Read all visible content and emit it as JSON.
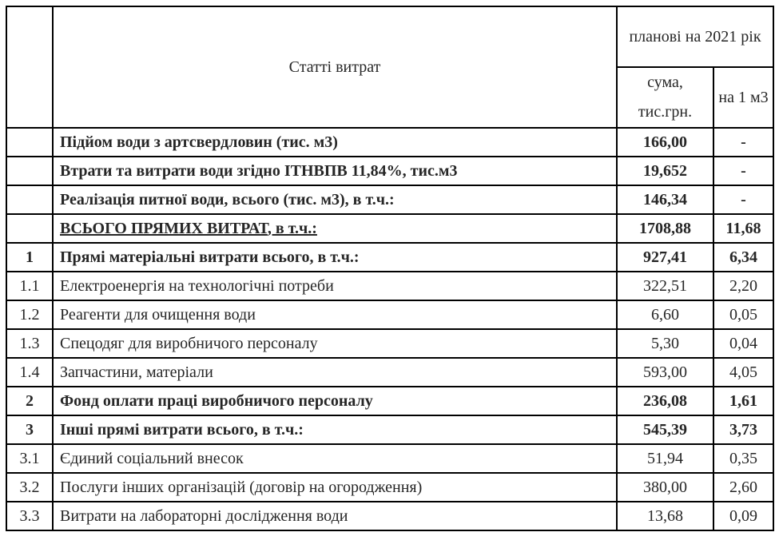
{
  "header": {
    "items_label": "Статті витрат",
    "planned_label": "планові на 2021 рік",
    "sum_label": "сума, тис.грн.",
    "per_unit_label": "на 1 м3"
  },
  "rows": [
    {
      "num": "",
      "name": "Підйом води з артсвердловин (тис. м3)",
      "sum": "166,00",
      "per": "-",
      "bold": true,
      "underline": false
    },
    {
      "num": "",
      "name": "Втрати та витрати води згідно ІТНВПВ 11,84%, тис.м3",
      "sum": "19,652",
      "per": "-",
      "bold": true,
      "underline": false
    },
    {
      "num": "",
      "name": "Реалізація питної води, всього (тис. м3), в т.ч.:",
      "sum": "146,34",
      "per": "-",
      "bold": true,
      "underline": false
    },
    {
      "num": "",
      "name": "ВСЬОГО ПРЯМИХ ВИТРАТ",
      "name_suffix": ", в т.ч.:",
      "sum": "1708,88",
      "per": "11,68",
      "bold": true,
      "underline": true
    },
    {
      "num": "1",
      "name": "Прямі матеріальні витрати всього, в т.ч.:",
      "sum": "927,41",
      "per": "6,34",
      "bold": true,
      "underline": false
    },
    {
      "num": "1.1",
      "name": "Електроенергія на технологічні потреби",
      "sum": "322,51",
      "per": "2,20",
      "bold": false,
      "underline": false
    },
    {
      "num": "1.2",
      "name": "Реагенти для очищення води",
      "sum": "6,60",
      "per": "0,05",
      "bold": false,
      "underline": false
    },
    {
      "num": "1.3",
      "name": "Спецодяг для виробничого персоналу",
      "sum": "5,30",
      "per": "0,04",
      "bold": false,
      "underline": false
    },
    {
      "num": "1.4",
      "name": "Запчастини, матеріали",
      "sum": "593,00",
      "per": "4,05",
      "bold": false,
      "underline": false
    },
    {
      "num": "2",
      "name": "Фонд оплати праці виробничого персоналу",
      "sum": "236,08",
      "per": "1,61",
      "bold": true,
      "underline": false
    },
    {
      "num": "3",
      "name": "Інші прямі витрати всього, в т.ч.:",
      "sum": "545,39",
      "per": "3,73",
      "bold": true,
      "underline": false
    },
    {
      "num": "3.1",
      "name": "Єдиний соціальний внесок",
      "sum": "51,94",
      "per": "0,35",
      "bold": false,
      "underline": false
    },
    {
      "num": "3.2",
      "name": "Послуги інших організацій (договір на огородження)",
      "sum": "380,00",
      "per": "2,60",
      "bold": false,
      "underline": false
    },
    {
      "num": "3.3",
      "name": "Витрати на лабораторні дослідження води",
      "sum": "13,68",
      "per": "0,09",
      "bold": false,
      "underline": false
    }
  ]
}
